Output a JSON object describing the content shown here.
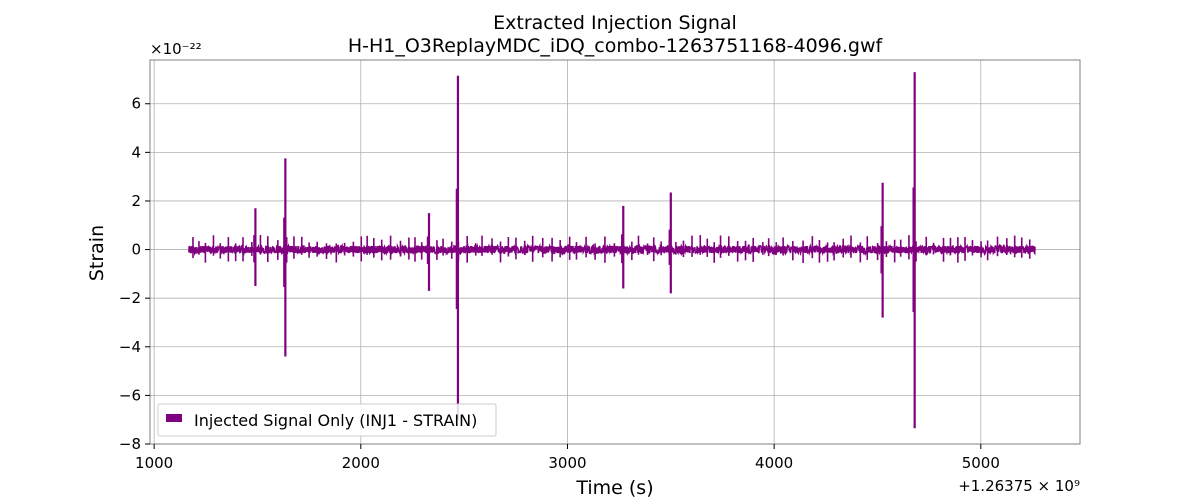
{
  "chart_data": {
    "type": "line",
    "title": "Extracted Injection Signal",
    "subtitle": "H-H1_O3ReplayMDC_iDQ_combo-1263751168-4096.gwf",
    "xlabel": "Time (s)",
    "ylabel": "Strain",
    "xlim": [
      980,
      5480
    ],
    "ylim": [
      -8.0,
      7.8
    ],
    "xticks": [
      1000,
      2000,
      3000,
      4000,
      5000
    ],
    "xtick_labels": [
      "1000",
      "2000",
      "3000",
      "4000",
      "5000"
    ],
    "yticks": [
      -8,
      -6,
      -4,
      -2,
      0,
      2,
      4,
      6
    ],
    "ytick_labels": [
      "−8",
      "−6",
      "−4",
      "−2",
      "0",
      "2",
      "4",
      "6"
    ],
    "y_multiplier": "×10⁻²²",
    "x_offset": "+1.26375 × 10⁹",
    "grid": true,
    "legend_position": "lower-left",
    "series": [
      {
        "name": "Injected Signal Only (INJ1 - STRAIN)",
        "color": "#800080",
        "x_range": [
          1168,
          5264
        ],
        "baseline_amplitude": 0.15,
        "bursts": [
          {
            "x": 1490,
            "max": 1.7,
            "min": -1.5
          },
          {
            "x": 1635,
            "max": 3.75,
            "min": -4.4
          },
          {
            "x": 2330,
            "max": 1.5,
            "min": -1.7
          },
          {
            "x": 2470,
            "max": 7.15,
            "min": -7.0
          },
          {
            "x": 3270,
            "max": 1.8,
            "min": -1.6
          },
          {
            "x": 3500,
            "max": 2.35,
            "min": -1.8
          },
          {
            "x": 4525,
            "max": 2.75,
            "min": -2.8
          },
          {
            "x": 4680,
            "max": 7.3,
            "min": -7.35
          }
        ]
      }
    ]
  }
}
